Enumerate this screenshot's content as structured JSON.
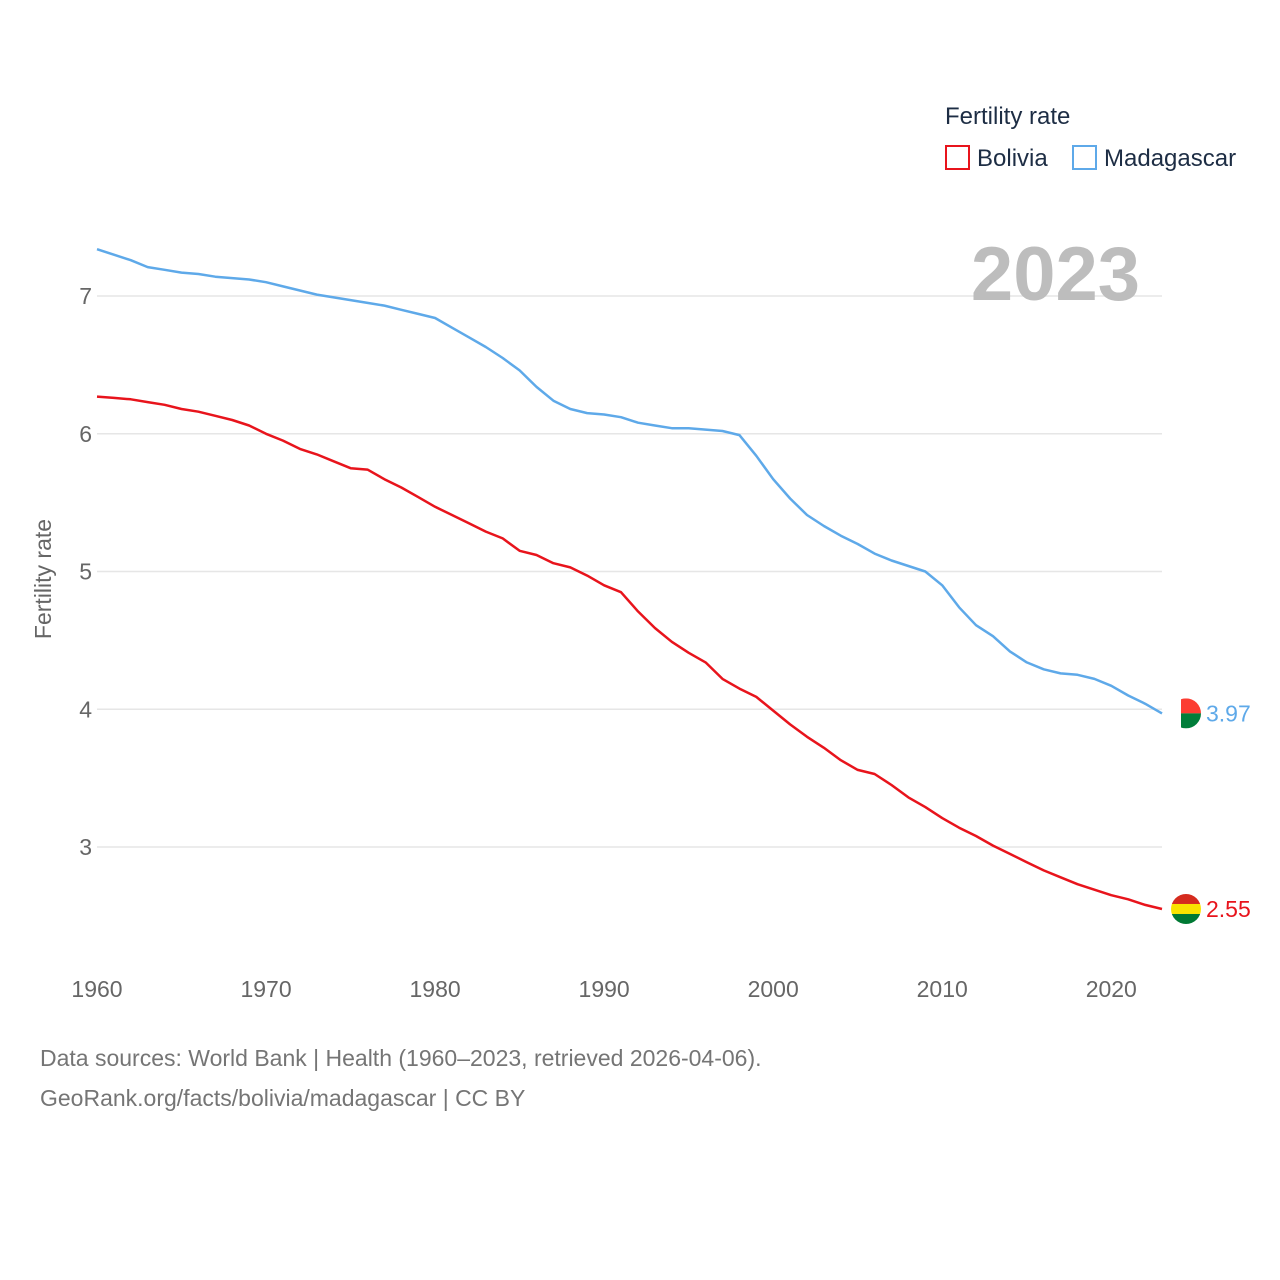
{
  "chart_data": {
    "type": "line",
    "title": "Fertility rate",
    "ylabel": "Fertility rate",
    "xlabel": "",
    "year_label": "2023",
    "xlim": [
      1960,
      2023
    ],
    "ylim": [
      2.2,
      7.6
    ],
    "x_ticks": [
      1960,
      1970,
      1980,
      1990,
      2000,
      2010,
      2020
    ],
    "y_ticks": [
      3,
      4,
      5,
      6,
      7
    ],
    "grid": "horizontal",
    "legend_position": "top-right",
    "x": [
      1960,
      1961,
      1962,
      1963,
      1964,
      1965,
      1966,
      1967,
      1968,
      1969,
      1970,
      1971,
      1972,
      1973,
      1974,
      1975,
      1976,
      1977,
      1978,
      1979,
      1980,
      1981,
      1982,
      1983,
      1984,
      1985,
      1986,
      1987,
      1988,
      1989,
      1990,
      1991,
      1992,
      1993,
      1994,
      1995,
      1996,
      1997,
      1998,
      1999,
      2000,
      2001,
      2002,
      2003,
      2004,
      2005,
      2006,
      2007,
      2008,
      2009,
      2010,
      2011,
      2012,
      2013,
      2014,
      2015,
      2016,
      2017,
      2018,
      2019,
      2020,
      2021,
      2022,
      2023
    ],
    "series": [
      {
        "name": "Bolivia",
        "color": "#e8141c",
        "end_label": "2.55",
        "flag": "bolivia-flag",
        "values": [
          6.27,
          6.26,
          6.25,
          6.23,
          6.21,
          6.18,
          6.16,
          6.13,
          6.1,
          6.06,
          6.0,
          5.95,
          5.89,
          5.85,
          5.8,
          5.75,
          5.74,
          5.67,
          5.61,
          5.54,
          5.47,
          5.41,
          5.35,
          5.29,
          5.24,
          5.15,
          5.12,
          5.06,
          5.03,
          4.97,
          4.9,
          4.85,
          4.71,
          4.59,
          4.49,
          4.41,
          4.34,
          4.22,
          4.15,
          4.09,
          3.99,
          3.89,
          3.8,
          3.72,
          3.63,
          3.56,
          3.53,
          3.45,
          3.36,
          3.29,
          3.21,
          3.14,
          3.08,
          3.01,
          2.95,
          2.89,
          2.83,
          2.78,
          2.73,
          2.69,
          2.65,
          2.62,
          2.58,
          2.55
        ]
      },
      {
        "name": "Madagascar",
        "color": "#5ea9e9",
        "end_label": "3.97",
        "flag": "madagascar-flag",
        "values": [
          7.34,
          7.3,
          7.26,
          7.21,
          7.19,
          7.17,
          7.16,
          7.14,
          7.13,
          7.12,
          7.1,
          7.07,
          7.04,
          7.01,
          6.99,
          6.97,
          6.95,
          6.93,
          6.9,
          6.87,
          6.84,
          6.77,
          6.7,
          6.63,
          6.55,
          6.46,
          6.34,
          6.24,
          6.18,
          6.15,
          6.14,
          6.12,
          6.08,
          6.06,
          6.04,
          6.04,
          6.03,
          6.02,
          5.99,
          5.84,
          5.67,
          5.53,
          5.41,
          5.33,
          5.26,
          5.2,
          5.13,
          5.08,
          5.04,
          5.0,
          4.9,
          4.74,
          4.61,
          4.53,
          4.42,
          4.34,
          4.29,
          4.26,
          4.25,
          4.22,
          4.17,
          4.1,
          4.04,
          3.97
        ]
      }
    ]
  },
  "footer": {
    "sources": "Data sources: World Bank | Health (1960–2023, retrieved 2026-04-06).",
    "credit": "GeoRank.org/facts/bolivia/madagascar | CC BY"
  }
}
